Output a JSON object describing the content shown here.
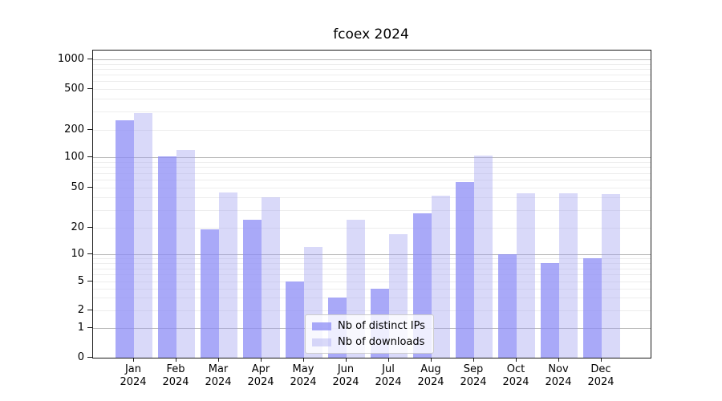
{
  "title": "fcoex 2024",
  "chart_data": {
    "type": "bar",
    "title": "fcoex 2024",
    "categories": [
      "Jan",
      "Feb",
      "Mar",
      "Apr",
      "May",
      "Jun",
      "Jul",
      "Aug",
      "Sep",
      "Oct",
      "Nov",
      "Dec"
    ],
    "year_label": "2024",
    "series": [
      {
        "name": "Nb of distinct IPs",
        "color": "rgba(140,140,245,0.75)",
        "values": [
          250,
          103,
          19,
          24,
          5,
          3,
          4,
          28,
          57,
          10,
          8,
          9
        ]
      },
      {
        "name": "Nb of downloads",
        "color": "rgba(160,160,240,0.4)",
        "values": [
          290,
          120,
          45,
          40,
          12,
          24,
          17,
          42,
          105,
          44,
          44,
          43
        ]
      }
    ],
    "yticks": [
      0,
      1,
      2,
      5,
      10,
      20,
      50,
      100,
      200,
      500,
      1000
    ],
    "ylim": [
      0,
      1400
    ],
    "yscale": "log-like with 0 baseline",
    "grid": "horizontal major at 1,10,100,1000; faint minors at 2-9 multiples",
    "legend_position": "bottom-center"
  }
}
